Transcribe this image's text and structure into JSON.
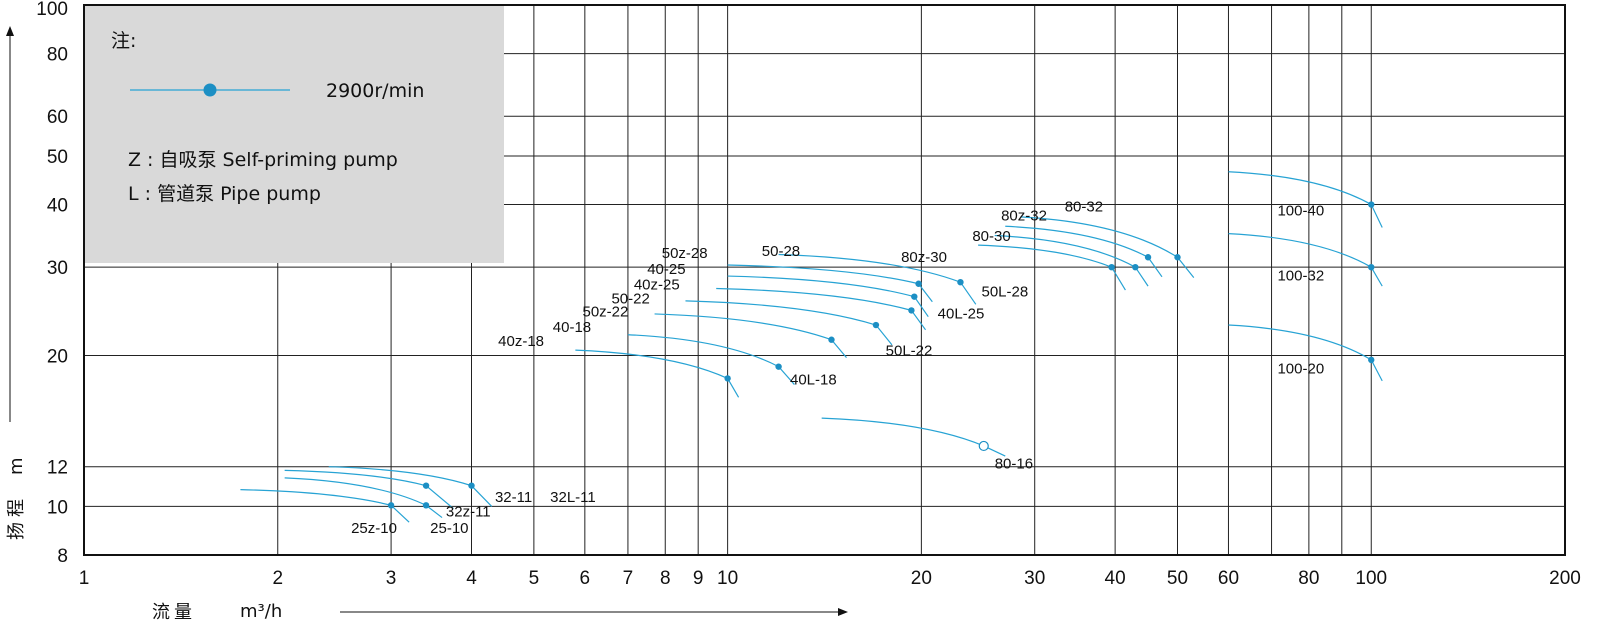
{
  "chart_data": {
    "type": "scatter",
    "title": "",
    "xlabel": "流量",
    "xunit": "m³/h",
    "ylabel": "扬程",
    "yunit": "m",
    "x_scale": "log",
    "y_scale": "log",
    "xlim": [
      1,
      200
    ],
    "ylim": [
      8,
      100
    ],
    "x_grid_ticks": [
      2,
      3,
      4,
      5,
      6,
      7,
      8,
      9,
      10,
      20,
      30,
      40,
      50,
      60,
      70,
      80,
      90,
      100,
      200
    ],
    "y_grid_ticks": [
      10,
      12,
      20,
      30,
      40,
      50,
      60,
      80,
      100
    ],
    "x_tick_labels": [
      "1",
      "2",
      "3",
      "4",
      "5",
      "6",
      "7",
      "8",
      "9",
      "10",
      "20",
      "30",
      "40",
      "50",
      "60",
      "80",
      "100",
      "200"
    ],
    "x_tick_values": [
      1,
      2,
      3,
      4,
      5,
      6,
      7,
      8,
      9,
      10,
      20,
      30,
      40,
      50,
      60,
      80,
      100,
      200
    ],
    "y_tick_labels": [
      "8",
      "10",
      "12",
      "20",
      "30",
      "40",
      "50",
      "60",
      "80",
      "100"
    ],
    "y_tick_values": [
      8,
      10,
      12,
      20,
      30,
      40,
      50,
      60,
      80,
      100
    ],
    "grid": true,
    "curve_color": "#27a3d4",
    "point_color": "#1c8fc4",
    "legend": {
      "title": "注:",
      "entry": "2900r/min",
      "note_z": "Z : 自吸泵 Self-priming pump",
      "note_l": "L : 管道泵  Pipe pump",
      "placement": "top-left",
      "background": "#d9d9d9"
    },
    "series": [
      {
        "x": [
          1.75,
          3.0,
          3.2
        ],
        "y": [
          10.8,
          10.05,
          9.3
        ],
        "marked_point": [
          3.0,
          10.05
        ],
        "open_point": false
      },
      {
        "x": [
          2.05,
          3.4,
          3.6
        ],
        "y": [
          11.4,
          10.05,
          9.5
        ],
        "marked_point": [
          3.4,
          10.05
        ],
        "open_point": false
      },
      {
        "x": [
          2.05,
          3.4,
          3.75
        ],
        "y": [
          11.8,
          11.0,
          9.9
        ],
        "marked_point": [
          3.4,
          11.0
        ],
        "open_point": false
      },
      {
        "x": [
          2.4,
          4.0,
          4.3
        ],
        "y": [
          12.0,
          11.0,
          10.0
        ],
        "marked_point": [
          4.0,
          11.0
        ],
        "open_point": false
      },
      {
        "x": [
          5.8,
          10.0,
          10.4
        ],
        "y": [
          20.5,
          18.0,
          16.5
        ],
        "marked_point": [
          10.0,
          18.0
        ],
        "open_point": false
      },
      {
        "x": [
          7.0,
          12.0,
          12.7
        ],
        "y": [
          22.0,
          19.0,
          17.5
        ],
        "marked_point": [
          12.0,
          19.0
        ],
        "open_point": false
      },
      {
        "x": [
          7.7,
          14.5,
          15.3
        ],
        "y": [
          24.2,
          21.5,
          19.8
        ],
        "marked_point": [
          14.5,
          21.5
        ],
        "open_point": false
      },
      {
        "x": [
          8.6,
          17.0,
          18.0
        ],
        "y": [
          25.7,
          23.0,
          21.0
        ],
        "marked_point": [
          17.0,
          23.0
        ],
        "open_point": false
      },
      {
        "x": [
          9.6,
          19.3,
          20.3
        ],
        "y": [
          27.2,
          24.6,
          22.5
        ],
        "marked_point": [
          19.3,
          24.6
        ],
        "open_point": false
      },
      {
        "x": [
          10.0,
          19.5,
          20.5
        ],
        "y": [
          28.8,
          26.2,
          23.9
        ],
        "marked_point": [
          19.5,
          26.2
        ],
        "open_point": false
      },
      {
        "x": [
          10.0,
          19.8,
          20.8
        ],
        "y": [
          30.3,
          27.8,
          25.6
        ],
        "marked_point": [
          19.8,
          27.8
        ],
        "open_point": false
      },
      {
        "x": [
          12.0,
          23.0,
          24.3
        ],
        "y": [
          31.8,
          28.0,
          25.3
        ],
        "marked_point": [
          23.0,
          28.0
        ],
        "open_point": false
      },
      {
        "x": [
          14.0,
          25.0,
          27.0
        ],
        "y": [
          15.0,
          13.2,
          12.6
        ],
        "marked_point": [
          25.0,
          13.2
        ],
        "open_point": true
      },
      {
        "x": [
          24.5,
          39.5,
          41.5
        ],
        "y": [
          33.2,
          30.0,
          27.0
        ],
        "marked_point": [
          39.5,
          30.0
        ],
        "open_point": false
      },
      {
        "x": [
          26.0,
          43.0,
          45.0
        ],
        "y": [
          34.7,
          30.0,
          27.5
        ],
        "marked_point": [
          43.0,
          30.0
        ],
        "open_point": false
      },
      {
        "x": [
          27.0,
          45.0,
          47.3
        ],
        "y": [
          36.2,
          31.4,
          28.7
        ],
        "marked_point": [
          45.0,
          31.4
        ],
        "open_point": false
      },
      {
        "x": [
          28.5,
          50.0,
          53.0
        ],
        "y": [
          37.8,
          31.4,
          28.6
        ],
        "marked_point": [
          50.0,
          31.4
        ],
        "open_point": false
      },
      {
        "x": [
          60.0,
          100.0,
          104.0
        ],
        "y": [
          23.0,
          19.6,
          17.8
        ],
        "marked_point": [
          100.0,
          19.6
        ],
        "open_point": false
      },
      {
        "x": [
          60.0,
          100.0,
          104.0
        ],
        "y": [
          35.0,
          30.0,
          27.5
        ],
        "marked_point": [
          100.0,
          30.0
        ],
        "open_point": false
      },
      {
        "x": [
          60.0,
          100.0,
          104.0
        ],
        "y": [
          46.5,
          40.0,
          36.0
        ],
        "marked_point": [
          100.0,
          40.0
        ],
        "open_point": false
      }
    ],
    "annotations": [
      {
        "text": "25z-10",
        "x": 2.6,
        "y": 8.85
      },
      {
        "text": "25-10",
        "x": 3.45,
        "y": 8.85
      },
      {
        "text": "32z-11",
        "x": 3.65,
        "y": 9.55
      },
      {
        "text": "32-11",
        "x": 4.35,
        "y": 10.2
      },
      {
        "text": "32L-11",
        "x": 5.3,
        "y": 10.2
      },
      {
        "text": "40z-18",
        "x": 4.4,
        "y": 20.9
      },
      {
        "text": "40-18",
        "x": 5.35,
        "y": 22.3
      },
      {
        "text": "50z-22",
        "x": 5.95,
        "y": 23.9
      },
      {
        "text": "50-22",
        "x": 6.6,
        "y": 25.4
      },
      {
        "text": "40z-25",
        "x": 7.15,
        "y": 27.1
      },
      {
        "text": "40-25",
        "x": 7.5,
        "y": 29.1
      },
      {
        "text": "50z-28",
        "x": 7.9,
        "y": 31.3
      },
      {
        "text": "50-28",
        "x": 11.3,
        "y": 31.6
      },
      {
        "text": "40L-18",
        "x": 12.5,
        "y": 17.5
      },
      {
        "text": "50L-22",
        "x": 17.6,
        "y": 20.0
      },
      {
        "text": "40L-25",
        "x": 21.2,
        "y": 23.7
      },
      {
        "text": "50L-28",
        "x": 24.8,
        "y": 26.2
      },
      {
        "text": "80-16",
        "x": 26.0,
        "y": 11.9
      },
      {
        "text": "80z-30",
        "x": 18.6,
        "y": 30.7
      },
      {
        "text": "80-30",
        "x": 24.0,
        "y": 33.8
      },
      {
        "text": "80z-32",
        "x": 26.6,
        "y": 37.2
      },
      {
        "text": "80-32",
        "x": 33.4,
        "y": 38.7
      },
      {
        "text": "100-40",
        "x": 71.5,
        "y": 38.0
      },
      {
        "text": "100-32",
        "x": 71.5,
        "y": 28.2
      },
      {
        "text": "100-20",
        "x": 71.5,
        "y": 18.4
      }
    ]
  }
}
